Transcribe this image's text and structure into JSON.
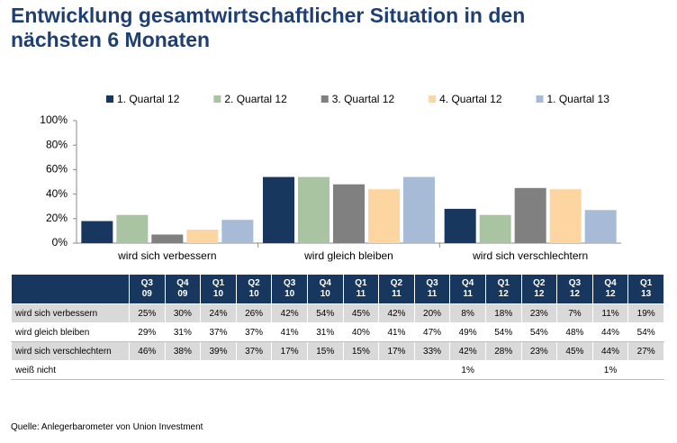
{
  "chart_data": {
    "type": "bar",
    "title": "Entwicklung gesamtwirtschaftlicher Situation in den nächsten 6 Monaten",
    "categories": [
      "wird sich verbessern",
      "wird gleich bleiben",
      "wird sich verschlechtern"
    ],
    "series": [
      {
        "name": "1. Quartal 12",
        "color": "#17375e",
        "values": [
          18,
          54,
          28
        ]
      },
      {
        "name": "2. Quartal 12",
        "color": "#a9c4a0",
        "values": [
          23,
          54,
          23
        ]
      },
      {
        "name": "3. Quartal 12",
        "color": "#808080",
        "values": [
          7,
          48,
          45
        ]
      },
      {
        "name": "4. Quartal 12",
        "color": "#fcd5a0",
        "values": [
          11,
          44,
          44
        ]
      },
      {
        "name": "1. Quartal 13",
        "color": "#a7bad6",
        "values": [
          19,
          54,
          27
        ]
      }
    ],
    "ylim": [
      0,
      100
    ],
    "yticks": [
      {
        "value": 0,
        "label": "0%"
      },
      {
        "value": 20,
        "label": "20%"
      },
      {
        "value": 40,
        "label": "40%"
      },
      {
        "value": 60,
        "label": "60%"
      },
      {
        "value": 80,
        "label": "80%"
      },
      {
        "value": 100,
        "label": "100%"
      }
    ],
    "grid": false,
    "legend": "top"
  },
  "table": {
    "columns": [
      {
        "quarter": "Q3",
        "year": "09"
      },
      {
        "quarter": "Q4",
        "year": "09"
      },
      {
        "quarter": "Q1",
        "year": "10"
      },
      {
        "quarter": "Q2",
        "year": "10"
      },
      {
        "quarter": "Q3",
        "year": "10"
      },
      {
        "quarter": "Q4",
        "year": "10"
      },
      {
        "quarter": "Q1",
        "year": "11"
      },
      {
        "quarter": "Q2",
        "year": "11"
      },
      {
        "quarter": "Q3",
        "year": "11"
      },
      {
        "quarter": "Q4",
        "year": "11"
      },
      {
        "quarter": "Q1",
        "year": "12"
      },
      {
        "quarter": "Q2",
        "year": "12"
      },
      {
        "quarter": "Q3",
        "year": "12"
      },
      {
        "quarter": "Q4",
        "year": "12"
      },
      {
        "quarter": "Q1",
        "year": "13"
      }
    ],
    "rows": [
      {
        "label": "wird sich verbessern",
        "cells": [
          "25%",
          "30%",
          "24%",
          "26%",
          "42%",
          "54%",
          "45%",
          "42%",
          "20%",
          "8%",
          "18%",
          "23%",
          "7%",
          "11%",
          "19%"
        ]
      },
      {
        "label": "wird gleich bleiben",
        "cells": [
          "29%",
          "31%",
          "37%",
          "37%",
          "41%",
          "31%",
          "40%",
          "41%",
          "47%",
          "49%",
          "54%",
          "54%",
          "48%",
          "44%",
          "54%"
        ]
      },
      {
        "label": "wird sich verschlechtern",
        "cells": [
          "46%",
          "38%",
          "39%",
          "37%",
          "17%",
          "15%",
          "15%",
          "17%",
          "33%",
          "42%",
          "28%",
          "23%",
          "45%",
          "44%",
          "27%"
        ]
      },
      {
        "label": "weiß nicht",
        "cells": [
          null,
          null,
          null,
          null,
          null,
          null,
          null,
          null,
          null,
          "1%",
          null,
          null,
          null,
          "1%",
          null
        ]
      }
    ]
  },
  "source": "Quelle: Anlegerbarometer von Union Investment"
}
